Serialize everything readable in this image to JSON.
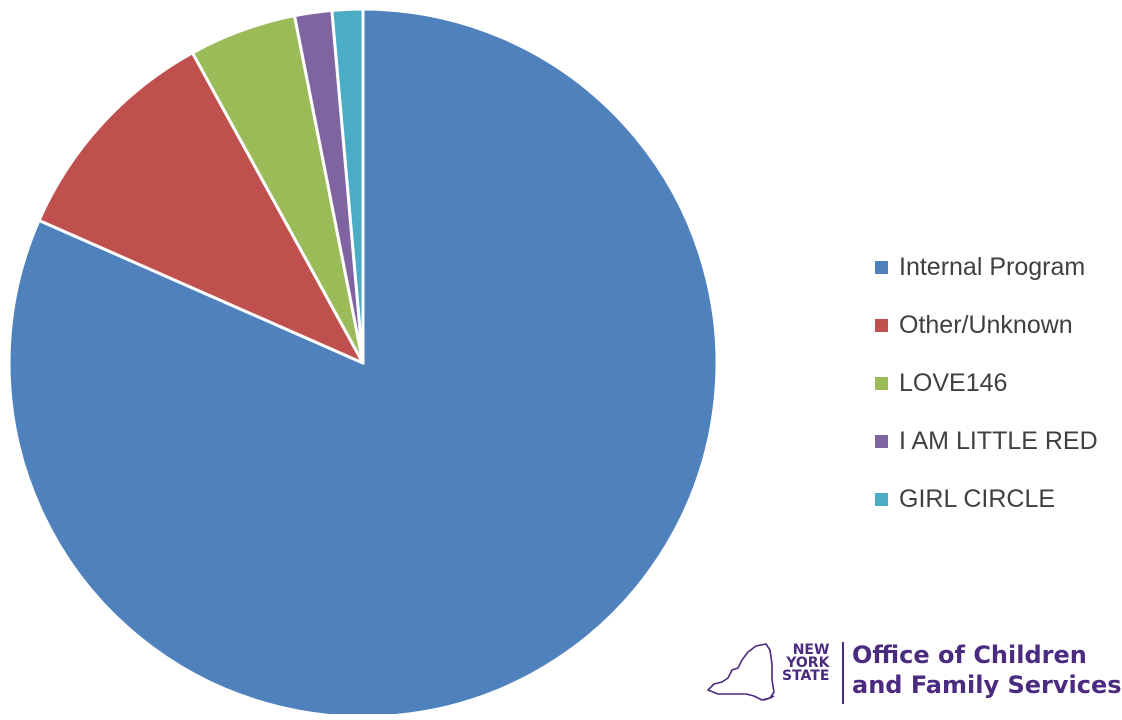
{
  "chart_data": {
    "type": "pie",
    "categories": [
      "Internal Program",
      "Other/Unknown",
      "LOVE146",
      "I AM LITTLE RED",
      "GIRL CIRCLE"
    ],
    "values": [
      81.6,
      10.4,
      4.9,
      1.7,
      1.4
    ],
    "colors": [
      "#4f81bd",
      "#c0504d",
      "#9bbb59",
      "#8064a2",
      "#4bacc6"
    ],
    "title": "",
    "legend_position": "right",
    "start_angle": "top, clockwise"
  },
  "logo": {
    "state_lines": [
      "NEW",
      "YORK",
      "STATE"
    ],
    "org_lines": [
      "Office of Children",
      "and Family Services"
    ],
    "color": "#4b2b7f"
  }
}
